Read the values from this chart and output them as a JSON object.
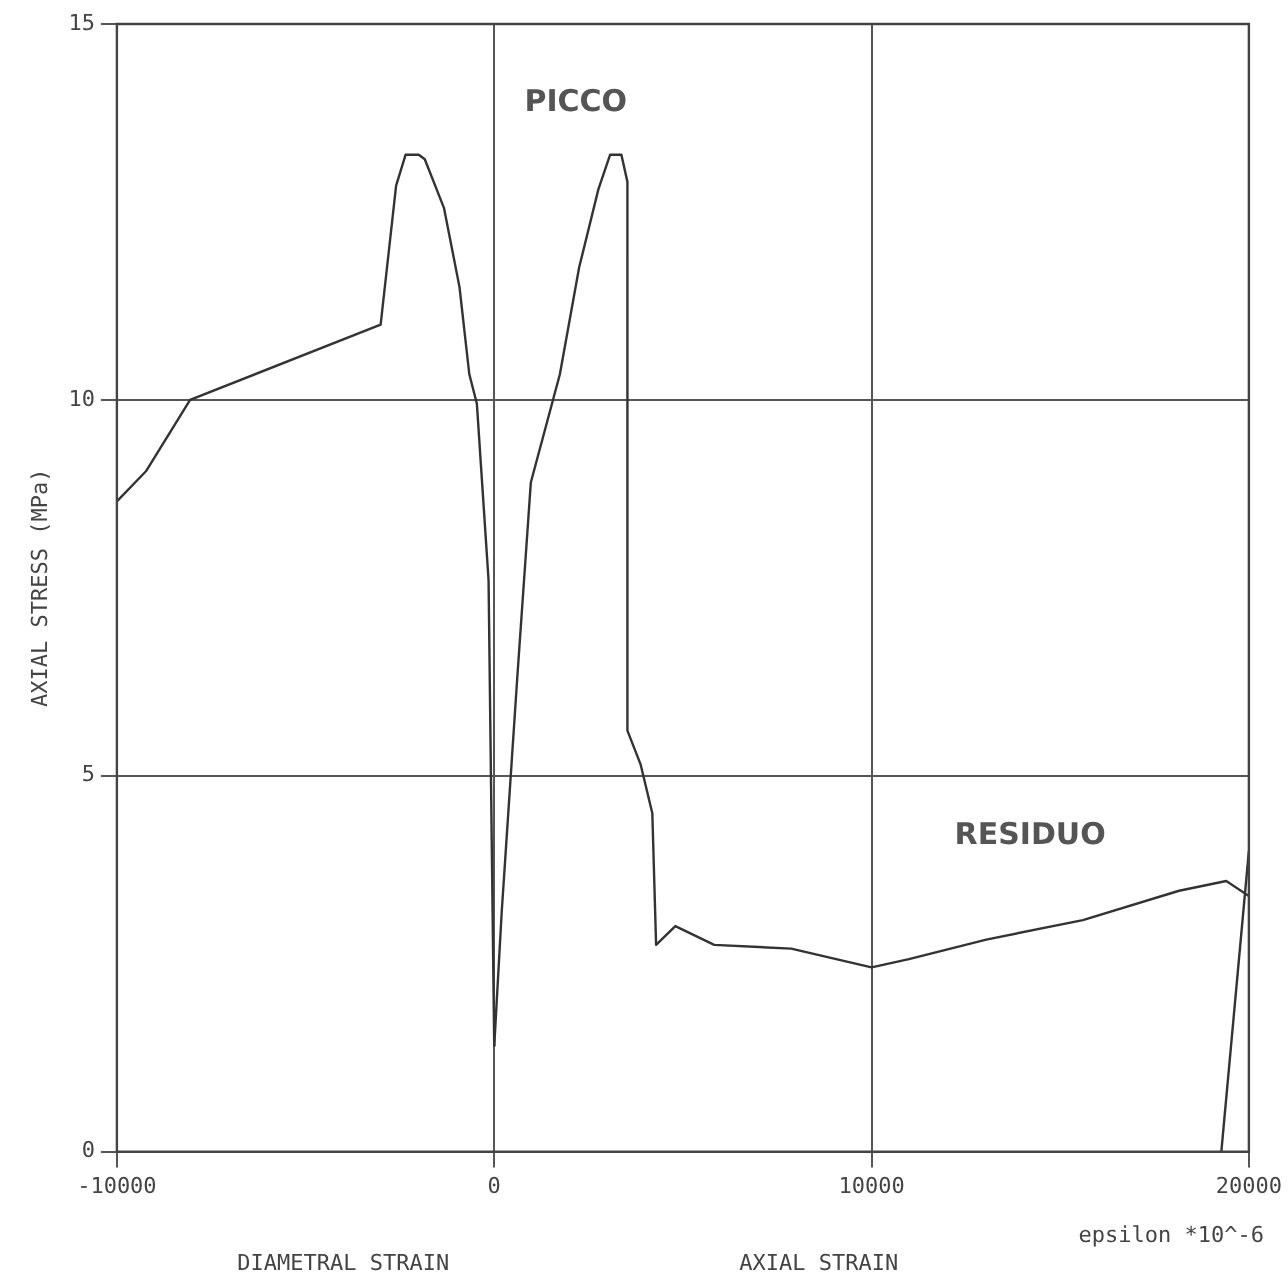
{
  "chart_data": {
    "type": "line",
    "ylabel": "AXIAL STRESS (MPa)",
    "xlabel": "epsilon *10^-6",
    "annotations": [
      "PICCO",
      "RESIDUO",
      "DIAMETRAL STRAIN",
      "AXIAL STRAIN"
    ],
    "series": [
      {
        "color": "#333333",
        "x": [
          -10000,
          -9230,
          -8060,
          -3010,
          -2600,
          -2350,
          -2000,
          -1840,
          -1330,
          -920,
          -660,
          -460,
          -150,
          0
        ],
        "values": [
          8.65,
          9.05,
          10,
          11,
          12.85,
          13.26,
          13.26,
          13.2,
          12.55,
          11.5,
          10.34,
          9.95,
          7.6,
          1.4
        ]
      },
      {
        "color": "#333333",
        "x": [
          0,
          200,
          610,
          970,
          1740,
          2250,
          2760,
          3070,
          3370,
          3530,
          3530,
          3880,
          4190,
          4290,
          4800,
          5830,
          7870,
          10000,
          10990,
          13040,
          15600,
          18150,
          19400,
          20000
        ],
        "values": [
          1.4,
          3.2,
          6.3,
          8.9,
          10.34,
          11.76,
          12.8,
          13.26,
          13.26,
          12.9,
          5.6,
          5.15,
          4.5,
          2.75,
          3,
          2.75,
          2.7,
          2.45,
          2.56,
          2.82,
          3.08,
          3.47,
          3.6,
          3.4
        ]
      },
      {
        "color": "#333333",
        "x": [
          19270,
          20000
        ],
        "values": [
          0,
          4
        ]
      }
    ],
    "xlim": [
      -10000,
      20000
    ],
    "xticks": [
      -10000,
      0,
      10000,
      20000
    ],
    "ylim": [
      0,
      15
    ],
    "yticks": [
      0,
      5,
      10,
      15
    ],
    "grid": true,
    "marker": "none",
    "line_style": "solid"
  }
}
